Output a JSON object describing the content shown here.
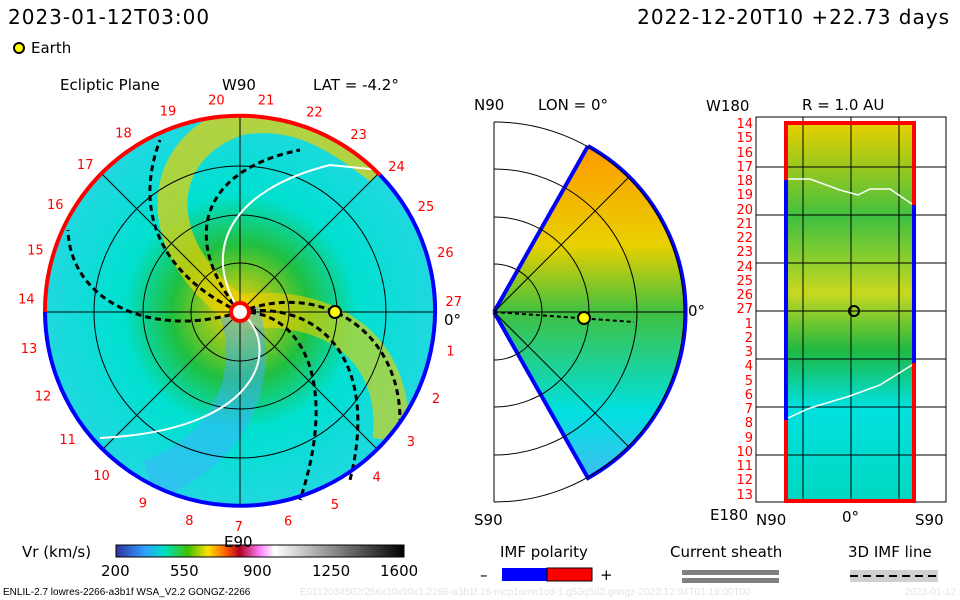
{
  "header": {
    "current_time": "2023-01-12T03:00",
    "reference": "2022-12-20T10 +22.73 days",
    "earth_label": "Earth"
  },
  "colors": {
    "earth_marker": "#ffff00",
    "positive": "#ff0000",
    "negative": "#0000ff",
    "sheath": "#808080"
  },
  "chart_data": [
    {
      "type": "heatmap",
      "title": "Ecliptic Plane",
      "subtitle": "LAT = -4.2°",
      "top_label": "W90",
      "bottom_label": "E90",
      "right_label": "0°",
      "carrington_labels": [
        "1",
        "2",
        "3",
        "4",
        "5",
        "6",
        "7",
        "8",
        "9",
        "10",
        "11",
        "12",
        "13",
        "14",
        "15",
        "16",
        "17",
        "18",
        "19",
        "20",
        "21",
        "22",
        "23",
        "24",
        "25",
        "26",
        "27"
      ]
    },
    {
      "type": "heatmap",
      "title": "LON = 0°",
      "top_label": "N90",
      "bottom_label": "S90",
      "right_label": "0°"
    },
    {
      "type": "heatmap",
      "title": "R = 1.0 AU",
      "top_label": "W180",
      "bottom_label": "E180",
      "x_labels": [
        "N90",
        "0°",
        "S90"
      ],
      "y_labels": [
        "14",
        "15",
        "16",
        "17",
        "18",
        "19",
        "20",
        "21",
        "22",
        "23",
        "24",
        "25",
        "26",
        "27",
        "1",
        "2",
        "3",
        "4",
        "5",
        "6",
        "7",
        "8",
        "9",
        "10",
        "11",
        "12",
        "13"
      ]
    }
  ],
  "legend": {
    "vr_label": "Vr (km/s)",
    "vr_ticks": [
      "200",
      "550",
      "900",
      "1250",
      "1600"
    ],
    "vr_range": [
      200,
      1600
    ],
    "imf_label": "IMF polarity",
    "imf_minus": "–",
    "imf_plus": "+",
    "sheath_label": "Current sheath",
    "imf_line_label": "3D IMF line"
  },
  "footer": {
    "model": "ENLIL-2.7 lowres-2266-a3b1f WSA_V2.2 GONGZ-2266",
    "run_id": "E0112034502/256x30x90x1.2266-a3b1f.16-mcp1umn1cd-1.g53q5d2.gongz-2022:12:04T01:19:00T00",
    "date": "2023-01-12"
  }
}
